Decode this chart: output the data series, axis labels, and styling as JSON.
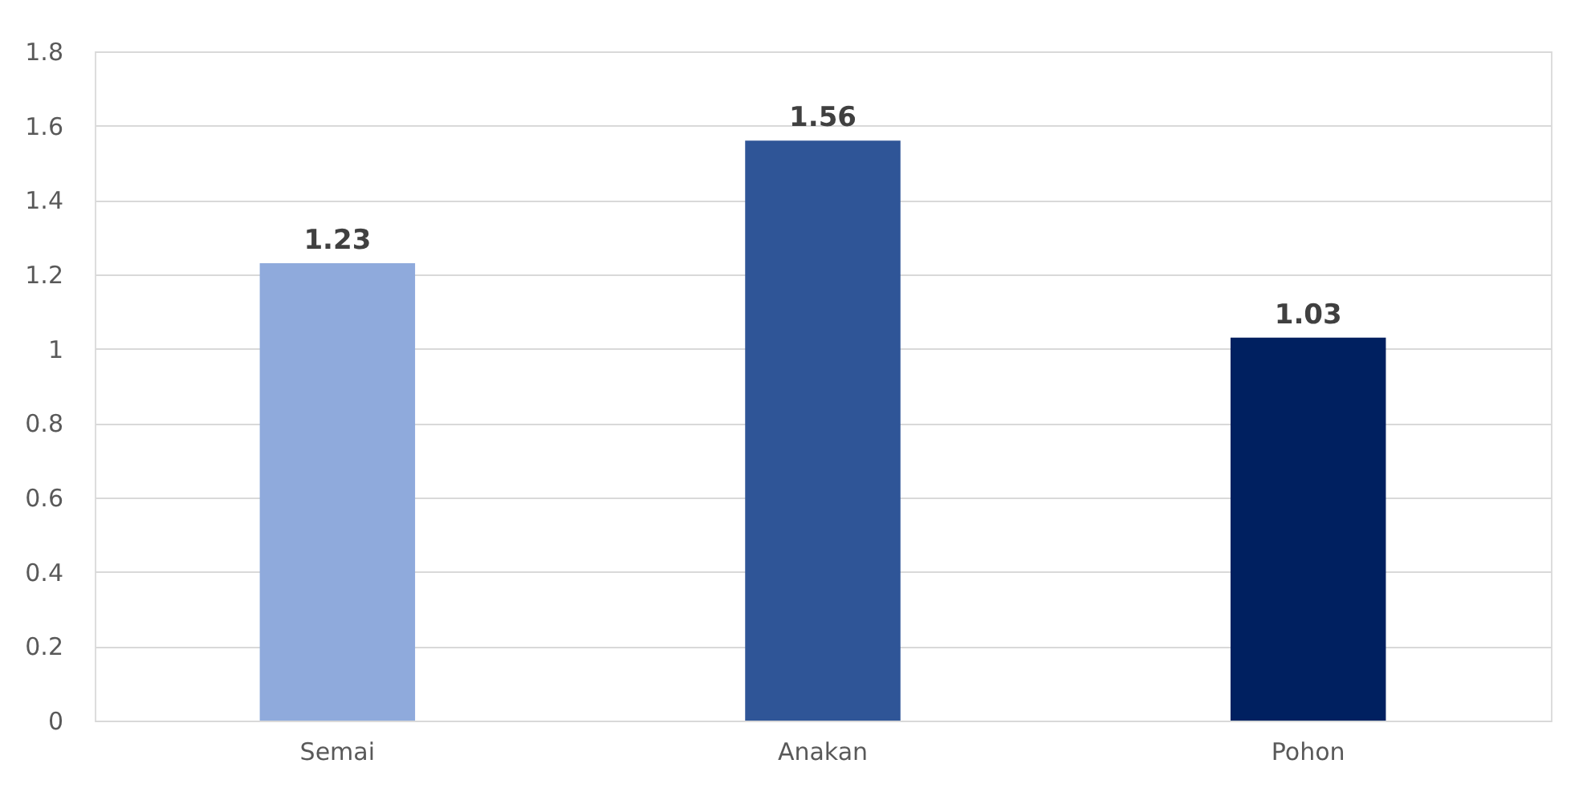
{
  "chart_data": {
    "type": "bar",
    "categories": [
      "Semai",
      "Anakan",
      "Pohon"
    ],
    "values": [
      1.23,
      1.56,
      1.03
    ],
    "colors": [
      "#8faadc",
      "#2f5597",
      "#002060"
    ],
    "ylim": [
      0,
      1.8
    ],
    "yticks": [
      0,
      0.2,
      0.4,
      0.6,
      0.8,
      1,
      1.2,
      1.4,
      1.6,
      1.8
    ],
    "grid": "y",
    "data_labels": true
  }
}
